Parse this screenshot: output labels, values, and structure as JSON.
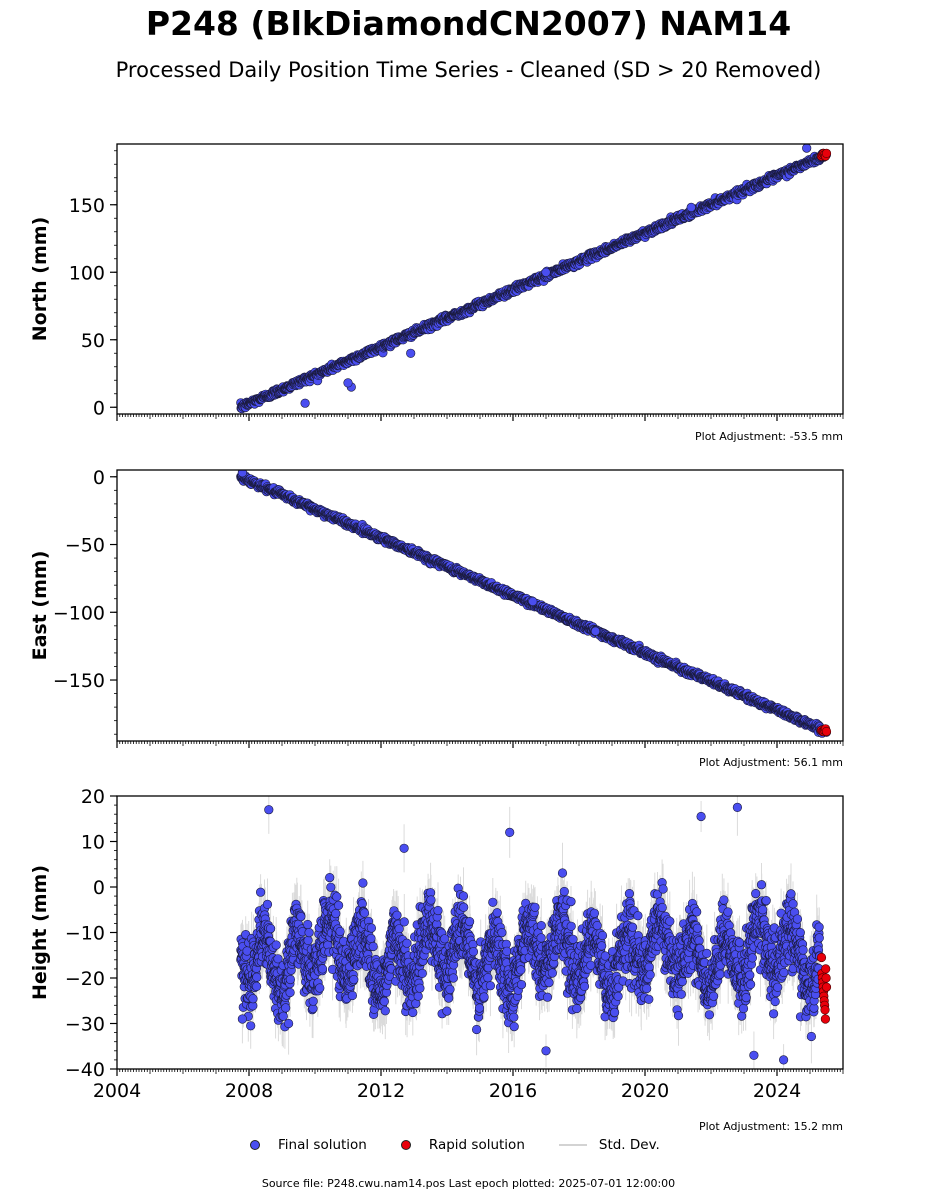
{
  "title": "P248 (BlkDiamondCN2007) NAM14",
  "subtitle": "Processed Daily Position Time Series - Cleaned (SD > 20 Removed)",
  "source_note": "Source file: P248.cwu.nam14.pos  Last epoch plotted: 2025-07-01 12:00:00",
  "legend": {
    "final": "Final solution",
    "rapid": "Rapid solution",
    "std": "Std. Dev."
  },
  "colors": {
    "final_fill": "#4a4ef0",
    "final_edge": "#1a1a3a",
    "rapid_fill": "#e8000b",
    "std_line": "#bdbdbd"
  },
  "chart_data": [
    {
      "type": "scatter",
      "name": "north",
      "ylabel": "North (mm)",
      "adjustment": "Plot Adjustment: -53.5 mm",
      "xlim": [
        2004,
        2026
      ],
      "ylim": [
        -5,
        195
      ],
      "yticks": [
        0,
        50,
        100,
        150
      ],
      "xticks": [
        2004,
        2008,
        2012,
        2016,
        2020,
        2024
      ],
      "show_xticklabels": false,
      "data_start": 2007.75,
      "data_end": 2025.5,
      "trend": [
        [
          2007.75,
          0
        ],
        [
          2025.5,
          187
        ]
      ],
      "noise_sd": 1.2,
      "outliers": [
        [
          2009.7,
          3
        ],
        [
          2011.1,
          15
        ],
        [
          2011.0,
          18
        ],
        [
          2012.9,
          40
        ],
        [
          2017.0,
          100
        ],
        [
          2021.4,
          148
        ],
        [
          2024.9,
          192
        ]
      ],
      "rapid": {
        "x_start": 2025.35,
        "x_end": 2025.5,
        "values": [
          186,
          187,
          188,
          187,
          186,
          188
        ]
      }
    },
    {
      "type": "scatter",
      "name": "east",
      "ylabel": "East (mm)",
      "adjustment": "Plot Adjustment: 56.1 mm",
      "xlim": [
        2004,
        2026
      ],
      "ylim": [
        -195,
        5
      ],
      "yticks": [
        0,
        -50,
        -100,
        -150
      ],
      "xticks": [
        2004,
        2008,
        2012,
        2016,
        2020,
        2024
      ],
      "show_xticklabels": false,
      "data_start": 2007.75,
      "data_end": 2025.5,
      "trend": [
        [
          2007.75,
          0
        ],
        [
          2025.5,
          -188
        ]
      ],
      "noise_sd": 1.1,
      "outliers": [
        [
          2007.8,
          3
        ],
        [
          2016.6,
          -92
        ],
        [
          2018.5,
          -114
        ]
      ],
      "rapid": {
        "x_start": 2025.35,
        "x_end": 2025.5,
        "values": [
          -187,
          -188,
          -188,
          -187,
          -186,
          -188
        ]
      }
    },
    {
      "type": "scatter",
      "name": "height",
      "ylabel": "Height (mm)",
      "adjustment": "Plot Adjustment: 15.2 mm",
      "xlim": [
        2004,
        2026
      ],
      "ylim": [
        -40,
        20
      ],
      "yticks": [
        20,
        10,
        0,
        -10,
        -20,
        -30,
        -40
      ],
      "xticks": [
        2004,
        2008,
        2012,
        2016,
        2020,
        2024
      ],
      "xticklabels": [
        "2004",
        "2008",
        "2012",
        "2016",
        "2020",
        "2024"
      ],
      "show_xticklabels": true,
      "data_start": 2007.75,
      "data_end": 2025.3,
      "mean": -15,
      "seasonal_amp": 6,
      "noise_sd": 4.5,
      "outliers": [
        [
          2008.6,
          17
        ],
        [
          2012.7,
          8.5
        ],
        [
          2015.9,
          12
        ],
        [
          2021.7,
          15.5
        ],
        [
          2022.8,
          17.5
        ],
        [
          2007.8,
          -29
        ],
        [
          2009.2,
          -30
        ],
        [
          2017.0,
          -36
        ],
        [
          2023.3,
          -37
        ],
        [
          2024.2,
          -38
        ]
      ],
      "rapid": {
        "x_start": 2025.35,
        "x_end": 2025.5,
        "values": [
          -15.5,
          -19,
          -20,
          -21,
          -22,
          -23,
          -24,
          -25,
          -26,
          -27,
          -29,
          -18,
          -20,
          -22
        ]
      }
    }
  ]
}
